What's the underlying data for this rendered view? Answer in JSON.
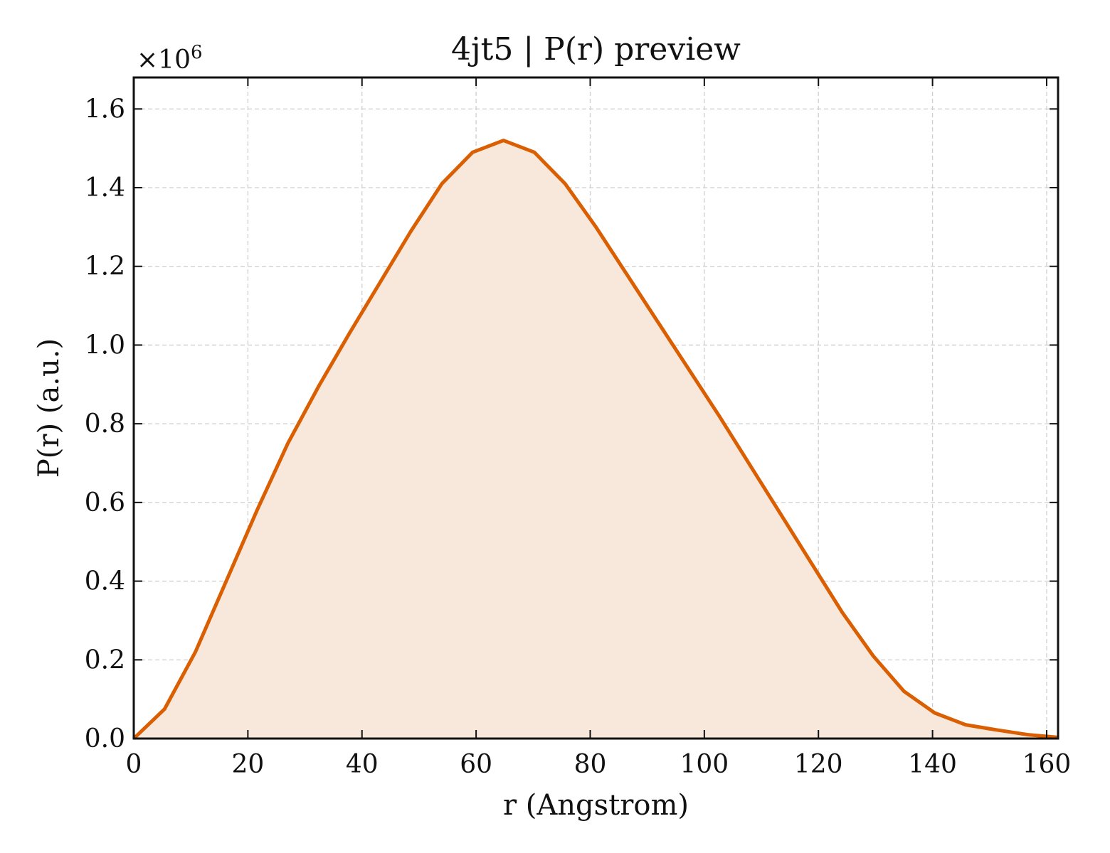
{
  "chart_data": {
    "type": "area",
    "title": "4jt5 | P(r) preview",
    "xlabel": "r (Angstrom)",
    "ylabel": "P(r) (a.u.)",
    "y_multiplier_label": "×10",
    "y_multiplier_exponent": "6",
    "xlim": [
      0,
      162
    ],
    "ylim": [
      0,
      1.68
    ],
    "x_ticks": [
      0,
      20,
      40,
      60,
      80,
      100,
      120,
      140,
      160
    ],
    "x_tick_labels": [
      "0",
      "20",
      "40",
      "60",
      "80",
      "100",
      "120",
      "140",
      "160"
    ],
    "y_ticks": [
      0,
      0.2,
      0.4,
      0.6,
      0.8,
      1.0,
      1.2,
      1.4,
      1.6
    ],
    "y_tick_labels": [
      "0.0",
      "0.2",
      "0.4",
      "0.6",
      "0.8",
      "1.0",
      "1.2",
      "1.4",
      "1.6"
    ],
    "grid": true,
    "colors": {
      "line": "#D95F02",
      "fill": "#F8E8DC"
    },
    "series": [
      {
        "x": [
          0,
          5.4,
          10.8,
          16.2,
          21.6,
          27,
          32.4,
          37.8,
          43.2,
          48.6,
          54,
          59.4,
          64.8,
          70.2,
          75.6,
          81,
          86.4,
          91.8,
          97.2,
          102.6,
          108,
          113.4,
          118.8,
          124.2,
          129.6,
          135,
          140.4,
          145.8,
          151.2,
          156.6,
          162
        ],
        "y": [
          0.0,
          0.075,
          0.22,
          0.4,
          0.58,
          0.75,
          0.895,
          1.03,
          1.16,
          1.29,
          1.41,
          1.49,
          1.52,
          1.49,
          1.41,
          1.3,
          1.18,
          1.06,
          0.94,
          0.82,
          0.695,
          0.57,
          0.445,
          0.32,
          0.21,
          0.12,
          0.065,
          0.035,
          0.022,
          0.01,
          0.003
        ]
      }
    ]
  }
}
